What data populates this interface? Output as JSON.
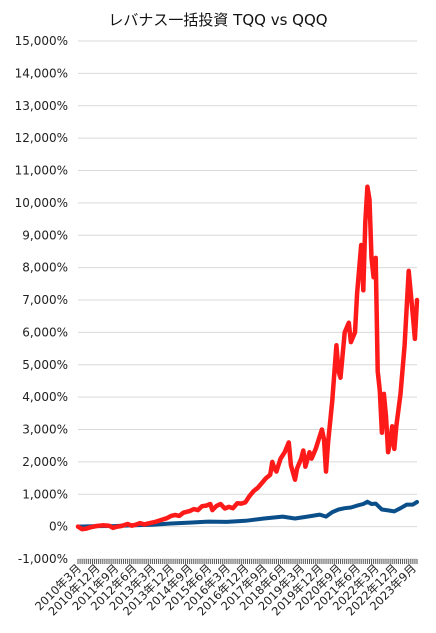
{
  "chart_data": {
    "type": "line",
    "title": "レバナス一括投資 TQQ vs QQQ",
    "ylabel": "",
    "xlabel": "",
    "ylim": [
      -1000,
      15000
    ],
    "yticks": [
      -1000,
      0,
      1000,
      2000,
      3000,
      4000,
      5000,
      6000,
      7000,
      8000,
      9000,
      10000,
      11000,
      12000,
      13000,
      14000,
      15000
    ],
    "ytick_labels": [
      "-1,000%",
      "0%",
      "1,000%",
      "2,000%",
      "3,000%",
      "4,000%",
      "5,000%",
      "6,000%",
      "7,000%",
      "8,000%",
      "9,000%",
      "10,000%",
      "11,000%",
      "12,000%",
      "13,000%",
      "14,000%",
      "15,000%"
    ],
    "x_range": [
      "2010-03",
      "2023-11"
    ],
    "xtick_labels": [
      "2010年3月",
      "2010年12月",
      "2011年9月",
      "2012年6月",
      "2013年3月",
      "2013年12月",
      "2014年9月",
      "2015年6月",
      "2016年3月",
      "2016年12月",
      "2017年9月",
      "2018年6月",
      "2019年3月",
      "2019年12月",
      "2020年9月",
      "2021年6月",
      "2022年3月",
      "2022年12月",
      "2023年9月"
    ],
    "grid": true,
    "legend": "none",
    "series": [
      {
        "color": "#ff1a1a",
        "points": [
          [
            "2010-03",
            0
          ],
          [
            "2010-05",
            -80
          ],
          [
            "2010-07",
            -60
          ],
          [
            "2010-09",
            -20
          ],
          [
            "2010-12",
            20
          ],
          [
            "2011-03",
            40
          ],
          [
            "2011-06",
            30
          ],
          [
            "2011-08",
            -40
          ],
          [
            "2011-10",
            0
          ],
          [
            "2011-12",
            20
          ],
          [
            "2012-03",
            80
          ],
          [
            "2012-05",
            30
          ],
          [
            "2012-07",
            60
          ],
          [
            "2012-09",
            110
          ],
          [
            "2012-11",
            70
          ],
          [
            "2013-01",
            100
          ],
          [
            "2013-04",
            140
          ],
          [
            "2013-07",
            200
          ],
          [
            "2013-10",
            260
          ],
          [
            "2013-12",
            330
          ],
          [
            "2014-02",
            360
          ],
          [
            "2014-04",
            330
          ],
          [
            "2014-06",
            430
          ],
          [
            "2014-09",
            480
          ],
          [
            "2014-11",
            540
          ],
          [
            "2015-01",
            510
          ],
          [
            "2015-03",
            630
          ],
          [
            "2015-05",
            650
          ],
          [
            "2015-07",
            700
          ],
          [
            "2015-08",
            510
          ],
          [
            "2015-10",
            640
          ],
          [
            "2015-12",
            700
          ],
          [
            "2016-02",
            560
          ],
          [
            "2016-04",
            610
          ],
          [
            "2016-06",
            570
          ],
          [
            "2016-08",
            720
          ],
          [
            "2016-10",
            710
          ],
          [
            "2016-12",
            750
          ],
          [
            "2017-02",
            950
          ],
          [
            "2017-04",
            1100
          ],
          [
            "2017-06",
            1200
          ],
          [
            "2017-08",
            1350
          ],
          [
            "2017-10",
            1500
          ],
          [
            "2017-12",
            1600
          ],
          [
            "2018-01",
            2000
          ],
          [
            "2018-02",
            1800
          ],
          [
            "2018-03",
            1700
          ],
          [
            "2018-05",
            2100
          ],
          [
            "2018-07",
            2300
          ],
          [
            "2018-09",
            2600
          ],
          [
            "2018-10",
            1900
          ],
          [
            "2018-12",
            1450
          ],
          [
            "2019-01",
            1800
          ],
          [
            "2019-03",
            2100
          ],
          [
            "2019-04",
            2350
          ],
          [
            "2019-05",
            1850
          ],
          [
            "2019-07",
            2300
          ],
          [
            "2019-08",
            2100
          ],
          [
            "2019-10",
            2400
          ],
          [
            "2019-12",
            2800
          ],
          [
            "2020-01",
            3000
          ],
          [
            "2020-02",
            2700
          ],
          [
            "2020-03",
            1700
          ],
          [
            "2020-04",
            2600
          ],
          [
            "2020-06",
            3900
          ],
          [
            "2020-08",
            5600
          ],
          [
            "2020-09",
            4800
          ],
          [
            "2020-10",
            4600
          ],
          [
            "2020-12",
            6000
          ],
          [
            "2021-02",
            6300
          ],
          [
            "2021-03",
            5700
          ],
          [
            "2021-05",
            6000
          ],
          [
            "2021-06",
            7200
          ],
          [
            "2021-08",
            8700
          ],
          [
            "2021-09",
            7300
          ],
          [
            "2021-10",
            9400
          ],
          [
            "2021-11",
            10500
          ],
          [
            "2021-12",
            10100
          ],
          [
            "2022-01",
            8300
          ],
          [
            "2022-02",
            7700
          ],
          [
            "2022-03",
            8300
          ],
          [
            "2022-04",
            4800
          ],
          [
            "2022-05",
            4200
          ],
          [
            "2022-06",
            2900
          ],
          [
            "2022-07",
            4100
          ],
          [
            "2022-08",
            3400
          ],
          [
            "2022-09",
            2300
          ],
          [
            "2022-10",
            2600
          ],
          [
            "2022-11",
            3100
          ],
          [
            "2022-12",
            2400
          ],
          [
            "2023-01",
            3100
          ],
          [
            "2023-03",
            4100
          ],
          [
            "2023-05",
            5600
          ],
          [
            "2023-07",
            7900
          ],
          [
            "2023-09",
            6500
          ],
          [
            "2023-10",
            5800
          ],
          [
            "2023-11",
            7000
          ]
        ]
      },
      {
        "color": "#0a4f8a",
        "points": [
          [
            "2010-03",
            0
          ],
          [
            "2010-12",
            15
          ],
          [
            "2011-09",
            20
          ],
          [
            "2012-06",
            45
          ],
          [
            "2013-03",
            55
          ],
          [
            "2013-12",
            95
          ],
          [
            "2014-09",
            125
          ],
          [
            "2015-06",
            155
          ],
          [
            "2016-03",
            145
          ],
          [
            "2016-12",
            180
          ],
          [
            "2017-09",
            250
          ],
          [
            "2018-06",
            310
          ],
          [
            "2018-12",
            250
          ],
          [
            "2019-06",
            310
          ],
          [
            "2019-12",
            370
          ],
          [
            "2020-03",
            310
          ],
          [
            "2020-06",
            450
          ],
          [
            "2020-09",
            530
          ],
          [
            "2020-12",
            570
          ],
          [
            "2021-03",
            590
          ],
          [
            "2021-06",
            650
          ],
          [
            "2021-09",
            700
          ],
          [
            "2021-11",
            770
          ],
          [
            "2022-01",
            700
          ],
          [
            "2022-03",
            710
          ],
          [
            "2022-06",
            530
          ],
          [
            "2022-09",
            500
          ],
          [
            "2022-12",
            470
          ],
          [
            "2023-03",
            570
          ],
          [
            "2023-06",
            680
          ],
          [
            "2023-09",
            680
          ],
          [
            "2023-11",
            760
          ]
        ]
      }
    ]
  }
}
